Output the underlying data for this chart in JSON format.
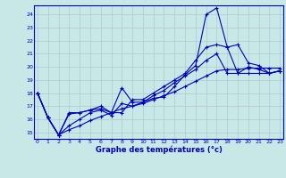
{
  "title": "Graphe des températures (°c)",
  "bg_color": "#c8e8e8",
  "line_color": "#0000bb",
  "grid_color": "#b0c8d0",
  "xlim": [
    -0.3,
    23.3
  ],
  "ylim": [
    14.5,
    24.7
  ],
  "yticks": [
    15,
    16,
    17,
    18,
    19,
    20,
    21,
    22,
    23,
    24
  ],
  "xticks": [
    0,
    1,
    2,
    3,
    4,
    5,
    6,
    7,
    8,
    9,
    10,
    11,
    12,
    13,
    14,
    15,
    16,
    17,
    18,
    19,
    20,
    21,
    22,
    23
  ],
  "line1_x": [
    0,
    1,
    2,
    3,
    4,
    5,
    6,
    7,
    8,
    9,
    10,
    11,
    12,
    13,
    14,
    15,
    16,
    17,
    18,
    19,
    20,
    21,
    22,
    23
  ],
  "line1_y": [
    18.0,
    16.1,
    14.8,
    16.4,
    16.5,
    16.7,
    16.8,
    16.5,
    18.4,
    17.3,
    17.3,
    17.6,
    17.7,
    18.5,
    19.4,
    20.1,
    24.0,
    24.5,
    21.5,
    21.7,
    20.3,
    20.1,
    19.5,
    19.7
  ],
  "line2_x": [
    0,
    1,
    2,
    3,
    4,
    5,
    6,
    7,
    8,
    9,
    10,
    11,
    12,
    13,
    14,
    15,
    16,
    17,
    18,
    19,
    20,
    21,
    22,
    23
  ],
  "line2_y": [
    18.0,
    16.1,
    14.8,
    16.5,
    16.5,
    16.7,
    17.0,
    16.5,
    16.5,
    17.5,
    17.5,
    18.0,
    18.5,
    19.0,
    19.5,
    20.5,
    21.5,
    21.7,
    21.5,
    19.5,
    20.0,
    19.8,
    19.5,
    19.7
  ],
  "line3_x": [
    0,
    1,
    2,
    3,
    4,
    5,
    6,
    7,
    8,
    9,
    10,
    11,
    12,
    13,
    14,
    15,
    16,
    17,
    18,
    19,
    20,
    21,
    22,
    23
  ],
  "line3_y": [
    18.0,
    16.1,
    14.8,
    15.5,
    16.0,
    16.5,
    16.7,
    16.3,
    17.2,
    17.0,
    17.3,
    17.8,
    18.2,
    18.8,
    19.3,
    19.8,
    20.5,
    21.0,
    19.5,
    19.5,
    19.5,
    19.5,
    19.5,
    19.7
  ],
  "line4_x": [
    0,
    1,
    2,
    3,
    4,
    5,
    6,
    7,
    8,
    9,
    10,
    11,
    12,
    13,
    14,
    15,
    16,
    17,
    18,
    19,
    20,
    21,
    22,
    23
  ],
  "line4_y": [
    18.0,
    16.1,
    14.8,
    15.2,
    15.5,
    15.9,
    16.2,
    16.5,
    16.8,
    17.0,
    17.2,
    17.5,
    17.8,
    18.1,
    18.5,
    18.9,
    19.3,
    19.7,
    19.8,
    19.8,
    19.9,
    19.9,
    19.9,
    19.9
  ]
}
